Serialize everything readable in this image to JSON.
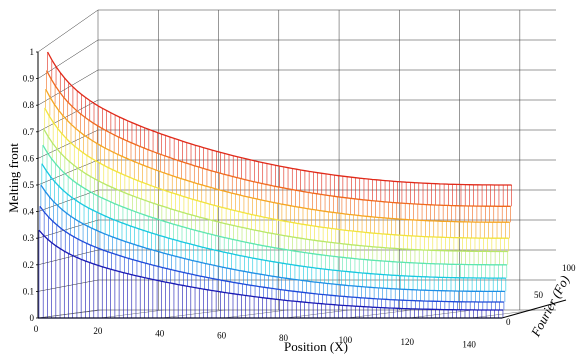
{
  "chart_data": {
    "type": "surface-mesh",
    "xlabel": "Position (X)",
    "ylabel": "Fourier (Fo)",
    "zlabel": "Melting front",
    "x_ticks": [
      "0",
      "20",
      "40",
      "60",
      "80",
      "100",
      "120",
      "140"
    ],
    "y_ticks": [
      "0",
      "50",
      "100"
    ],
    "z_ticks": [
      "0",
      "0.1",
      "0.2",
      "0.3",
      "0.4",
      "0.5",
      "0.6",
      "0.7",
      "0.8",
      "0.9",
      "1"
    ],
    "xlim": [
      0,
      150
    ],
    "ylim": [
      0,
      100
    ],
    "zlim": [
      0,
      1
    ],
    "grid": true,
    "colormap": [
      "#1a1ab4",
      "#1f4bd9",
      "#1f8fe6",
      "#18c8e0",
      "#5ee6b0",
      "#b8e86a",
      "#f2e43c",
      "#f5a623",
      "#f06a1e",
      "#e02a1a"
    ],
    "surface": {
      "x": [
        0,
        5,
        10,
        15,
        20,
        30,
        40,
        50,
        60,
        80,
        100,
        120,
        140,
        150
      ],
      "fourier_levels": [
        0,
        10,
        20,
        30,
        40,
        50,
        60,
        70,
        80,
        90,
        100
      ],
      "front_at_x0": [
        0,
        0.33,
        0.42,
        0.5,
        0.58,
        0.65,
        0.71,
        0.79,
        0.86,
        0.93,
        1.0
      ],
      "front_at_x150": [
        0,
        0.03,
        0.06,
        0.1,
        0.15,
        0.2,
        0.25,
        0.3,
        0.36,
        0.42,
        0.5
      ]
    }
  }
}
